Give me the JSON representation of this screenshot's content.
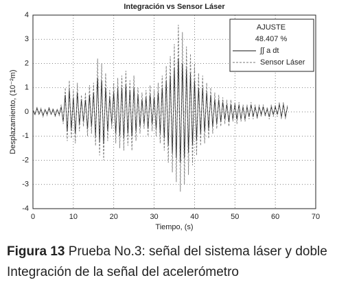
{
  "chart_data": {
    "type": "line",
    "title": "Integración vs Sensor Láser",
    "xlabel": "Tiempo, (s)",
    "ylabel": "Desplazamiento, (10⁻²m)",
    "annotations": [
      "AJUSTE",
      "48.407 %"
    ],
    "xlim": [
      0,
      70
    ],
    "xticks": [
      0,
      10,
      20,
      30,
      40,
      50,
      60,
      70
    ],
    "ylim": [
      -4,
      4
    ],
    "yticks": [
      -4,
      -3,
      -2,
      -1,
      0,
      1,
      2,
      3,
      4
    ],
    "grid": true,
    "legend": "upper right",
    "x": [
      0,
      0.5,
      1,
      1.5,
      2,
      2.5,
      3,
      3.5,
      4,
      4.5,
      5,
      5.5,
      6,
      6.5,
      7,
      7.5,
      8,
      8.5,
      9,
      9.5,
      10,
      10.5,
      11,
      11.5,
      12,
      12.5,
      13,
      13.5,
      14,
      14.5,
      15,
      15.5,
      16,
      16.5,
      17,
      17.5,
      18,
      18.5,
      19,
      19.5,
      20,
      20.5,
      21,
      21.5,
      22,
      22.5,
      23,
      23.5,
      24,
      24.5,
      25,
      25.5,
      26,
      26.5,
      27,
      27.5,
      28,
      28.5,
      29,
      29.5,
      30,
      30.5,
      31,
      31.5,
      32,
      32.5,
      33,
      33.5,
      34,
      34.5,
      35,
      35.5,
      36,
      36.5,
      37,
      37.5,
      38,
      38.5,
      39,
      39.5,
      40,
      40.5,
      41,
      41.5,
      42,
      42.5,
      43,
      43.5,
      44,
      44.5,
      45,
      45.5,
      46,
      46.5,
      47,
      47.5,
      48,
      48.5,
      49,
      49.5,
      50,
      50.5,
      51,
      51.5,
      52,
      52.5,
      53,
      53.5,
      54,
      54.5,
      55,
      55.5,
      56,
      56.5,
      57,
      57.5,
      58,
      58.5,
      59,
      59.5,
      60,
      60.5,
      61,
      61.5,
      62,
      62.5,
      63
    ],
    "series": [
      {
        "name": "∫∫ a dt",
        "color": "#111111",
        "dash": false,
        "values": [
          0.1,
          -0.1,
          0.15,
          -0.1,
          0.1,
          -0.15,
          0.1,
          -0.1,
          0.15,
          -0.1,
          0.1,
          -0.15,
          0.1,
          -0.1,
          0.2,
          -0.4,
          0.7,
          -0.8,
          0.9,
          -0.7,
          0.6,
          -0.9,
          0.8,
          -0.5,
          0.5,
          -0.4,
          0.5,
          -0.7,
          0.7,
          -0.6,
          0.8,
          -1.0,
          1.4,
          -1.2,
          1.3,
          -1.3,
          1.0,
          -0.8,
          0.6,
          -0.5,
          0.8,
          -0.9,
          1.0,
          -1.0,
          1.0,
          -1.1,
          1.1,
          -0.9,
          0.9,
          -1.0,
          1.0,
          -0.8,
          0.7,
          -0.6,
          0.5,
          -0.5,
          0.6,
          -0.7,
          0.7,
          -0.5,
          0.6,
          -0.7,
          0.8,
          -0.9,
          1.0,
          -1.1,
          1.3,
          -1.4,
          1.5,
          -1.7,
          1.8,
          -1.9,
          2.2,
          -2.1,
          2.0,
          -1.9,
          1.8,
          -1.7,
          1.6,
          -1.4,
          1.3,
          -1.2,
          1.0,
          -0.9,
          1.0,
          -0.8,
          0.8,
          -0.7,
          0.7,
          -0.6,
          0.5,
          -0.5,
          0.5,
          -0.4,
          0.4,
          -0.3,
          0.3,
          -0.4,
          0.3,
          -0.3,
          0.3,
          -0.3,
          0.3,
          -0.3,
          0.2,
          -0.3,
          0.2,
          -0.2,
          0.3,
          -0.2,
          0.2,
          -0.2,
          0.2,
          -0.1,
          0.2,
          -0.1,
          0.1,
          -0.2,
          0.2,
          -0.1,
          0.2,
          -0.1,
          0.3,
          -0.2,
          0.3,
          -0.2,
          0.2
        ]
      },
      {
        "name": "Sensor Láser",
        "color": "#777777",
        "dash": true,
        "values": [
          0.1,
          -0.15,
          0.2,
          -0.1,
          0.15,
          -0.2,
          0.1,
          -0.15,
          0.2,
          -0.1,
          0.15,
          -0.2,
          0.1,
          -0.15,
          0.3,
          -0.5,
          1.0,
          -1.2,
          1.3,
          -1.1,
          0.9,
          -1.3,
          1.2,
          -0.8,
          0.7,
          -0.6,
          0.8,
          -1.0,
          1.1,
          -0.9,
          1.2,
          -1.4,
          2.2,
          -1.8,
          2.0,
          -2.0,
          1.6,
          -1.2,
          0.9,
          -0.7,
          1.2,
          -1.3,
          1.4,
          -1.5,
          1.5,
          -1.6,
          1.7,
          -1.4,
          1.3,
          -1.6,
          1.5,
          -1.2,
          1.0,
          -0.9,
          0.8,
          -0.7,
          0.9,
          -1.0,
          1.1,
          -0.8,
          0.9,
          -1.0,
          1.2,
          -1.3,
          1.5,
          -1.6,
          1.9,
          -2.1,
          2.3,
          -2.5,
          2.8,
          -2.9,
          3.6,
          -3.3,
          3.3,
          -3.0,
          2.7,
          -2.6,
          2.4,
          -2.2,
          2.0,
          -1.8,
          1.6,
          -1.4,
          1.5,
          -1.3,
          1.2,
          -1.1,
          1.0,
          -0.9,
          0.8,
          -0.7,
          0.7,
          -0.6,
          0.6,
          -0.5,
          0.5,
          -0.6,
          0.5,
          -0.4,
          0.4,
          -0.5,
          0.4,
          -0.4,
          0.3,
          -0.4,
          0.3,
          -0.3,
          0.4,
          -0.3,
          0.3,
          -0.3,
          0.3,
          -0.2,
          0.3,
          -0.2,
          0.2,
          -0.3,
          0.3,
          -0.2,
          0.3,
          -0.2,
          0.4,
          -0.3,
          0.4,
          -0.3,
          0.3
        ]
      }
    ]
  },
  "caption": {
    "label": "Figura 13",
    "text": "Prueba No.3: señal del sistema láser y doble Integración de la señal del acelerómetro"
  }
}
